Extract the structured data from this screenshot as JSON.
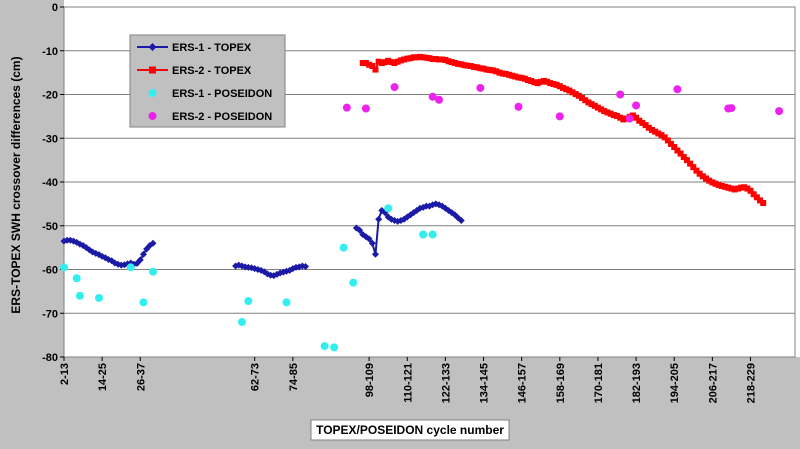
{
  "chart_data": {
    "type": "line",
    "xlabel": "TOPEX/POSEIDON cycle number",
    "ylabel": "ERS-TOPEX SWH crossover differences (cm)",
    "xlim": [
      0,
      230
    ],
    "ylim": [
      -80,
      0
    ],
    "y_ticks": [
      "-80",
      "-70",
      "-60",
      "-50",
      "-40",
      "-30",
      "-20",
      "-10",
      "0"
    ],
    "x_ticks": [
      {
        "label": "2-13",
        "x": 0
      },
      {
        "label": "14-25",
        "x": 12
      },
      {
        "label": "26-37",
        "x": 24
      },
      {
        "label": "62-73",
        "x": 60
      },
      {
        "label": "74-85",
        "x": 72
      },
      {
        "label": "98-109",
        "x": 96
      },
      {
        "label": "110-121",
        "x": 108
      },
      {
        "label": "122-133",
        "x": 120
      },
      {
        "label": "134-145",
        "x": 132
      },
      {
        "label": "146-157",
        "x": 144
      },
      {
        "label": "158-169",
        "x": 156
      },
      {
        "label": "170-181",
        "x": 168
      },
      {
        "label": "182-193",
        "x": 180
      },
      {
        "label": "194-205",
        "x": 192
      },
      {
        "label": "206-217",
        "x": 204
      },
      {
        "label": "218-229",
        "x": 216
      }
    ],
    "grid": "horizontal",
    "legend_position": "top-left",
    "series": [
      {
        "name": "ERS-1 - TOPEX",
        "style": "line-diamond",
        "color": "#1a1aa6",
        "segments": [
          [
            [
              0,
              -53.5
            ],
            [
              1,
              -53.3
            ],
            [
              2,
              -53.3
            ],
            [
              3,
              -53.5
            ],
            [
              4,
              -53.8
            ],
            [
              5,
              -54.2
            ],
            [
              6,
              -54.5
            ],
            [
              7,
              -55
            ],
            [
              8,
              -55.5
            ],
            [
              9,
              -56
            ],
            [
              10,
              -56.3
            ],
            [
              11,
              -56.6
            ],
            [
              12,
              -57
            ],
            [
              13,
              -57.3
            ],
            [
              14,
              -57.7
            ],
            [
              15,
              -58
            ],
            [
              16,
              -58.5
            ],
            [
              17,
              -58.8
            ],
            [
              18,
              -59
            ],
            [
              19,
              -58.9
            ],
            [
              20,
              -58.7
            ],
            [
              21,
              -58.5
            ],
            [
              22,
              -58.8
            ],
            [
              23,
              -58.6
            ],
            [
              24,
              -57.8
            ],
            [
              25,
              -56.5
            ],
            [
              26,
              -55.3
            ],
            [
              27,
              -54.5
            ],
            [
              28,
              -54
            ]
          ],
          [
            [
              54,
              -59.2
            ],
            [
              55,
              -59
            ],
            [
              56,
              -59.2
            ],
            [
              57,
              -59.4
            ],
            [
              58,
              -59.5
            ],
            [
              59,
              -59.6
            ],
            [
              60,
              -59.8
            ],
            [
              61,
              -60
            ],
            [
              62,
              -60.2
            ],
            [
              63,
              -60.5
            ],
            [
              64,
              -61
            ],
            [
              65,
              -61.3
            ],
            [
              66,
              -61.4
            ],
            [
              67,
              -61.1
            ],
            [
              68,
              -60.8
            ],
            [
              69,
              -60.6
            ],
            [
              70,
              -60.4
            ],
            [
              71,
              -60.2
            ],
            [
              72,
              -59.8
            ],
            [
              73,
              -59.5
            ],
            [
              74,
              -59.4
            ],
            [
              75,
              -59.2
            ],
            [
              76,
              -59.3
            ]
          ],
          [
            [
              92,
              -50.5
            ],
            [
              93,
              -51
            ],
            [
              94,
              -52
            ],
            [
              95,
              -52.5
            ],
            [
              96,
              -53
            ],
            [
              97,
              -54
            ],
            [
              98,
              -56.5
            ],
            [
              99,
              -48.5
            ],
            [
              100,
              -46.5
            ],
            [
              101,
              -47
            ],
            [
              102,
              -48
            ],
            [
              103,
              -48.5
            ],
            [
              104,
              -48.8
            ],
            [
              105,
              -49
            ],
            [
              106,
              -48.8
            ],
            [
              107,
              -48.5
            ],
            [
              108,
              -48
            ],
            [
              109,
              -47.5
            ],
            [
              110,
              -47
            ],
            [
              111,
              -46.5
            ],
            [
              112,
              -46
            ],
            [
              113,
              -45.8
            ],
            [
              114,
              -45.5
            ],
            [
              115,
              -45.5
            ],
            [
              116,
              -45.2
            ],
            [
              117,
              -45
            ],
            [
              118,
              -45.2
            ],
            [
              119,
              -45.5
            ],
            [
              120,
              -46
            ],
            [
              121,
              -46.5
            ],
            [
              122,
              -47
            ],
            [
              123,
              -47.5
            ],
            [
              124,
              -48.2
            ],
            [
              125,
              -48.8
            ]
          ]
        ]
      },
      {
        "name": "ERS-2 - TOPEX",
        "style": "line-square",
        "color": "#ff0000",
        "segments": [
          [
            [
              94,
              -12.8
            ],
            [
              95,
              -12.8
            ],
            [
              96,
              -13.2
            ],
            [
              97,
              -13.5
            ],
            [
              98,
              -14.3
            ],
            [
              99,
              -12.5
            ],
            [
              100,
              -12.8
            ],
            [
              101,
              -12.6
            ],
            [
              102,
              -12.3
            ],
            [
              103,
              -12.6
            ],
            [
              104,
              -12.8
            ],
            [
              105,
              -12.5
            ],
            [
              106,
              -12.2
            ],
            [
              107,
              -12
            ],
            [
              108,
              -11.8
            ],
            [
              109,
              -11.7
            ],
            [
              110,
              -11.5
            ],
            [
              111,
              -11.5
            ],
            [
              112,
              -11.4
            ],
            [
              113,
              -11.5
            ],
            [
              114,
              -11.6
            ],
            [
              115,
              -11.7
            ],
            [
              116,
              -11.9
            ],
            [
              117,
              -11.9
            ],
            [
              118,
              -12
            ],
            [
              119,
              -12
            ],
            [
              120,
              -12.1
            ],
            [
              121,
              -12.4
            ],
            [
              122,
              -12.6
            ],
            [
              123,
              -12.8
            ],
            [
              124,
              -13
            ],
            [
              125,
              -13.1
            ],
            [
              126,
              -13.3
            ],
            [
              127,
              -13.4
            ],
            [
              128,
              -13.5
            ],
            [
              129,
              -13.7
            ],
            [
              130,
              -13.8
            ],
            [
              131,
              -14
            ],
            [
              132,
              -14.1
            ],
            [
              133,
              -14.3
            ],
            [
              134,
              -14.4
            ],
            [
              135,
              -14.5
            ],
            [
              136,
              -14.7
            ],
            [
              137,
              -15
            ],
            [
              138,
              -15.2
            ],
            [
              139,
              -15.3
            ],
            [
              140,
              -15.5
            ],
            [
              141,
              -15.7
            ],
            [
              142,
              -15.9
            ],
            [
              143,
              -16.1
            ],
            [
              144,
              -16.2
            ],
            [
              145,
              -16.4
            ],
            [
              146,
              -16.7
            ],
            [
              147,
              -16.9
            ],
            [
              148,
              -17.2
            ],
            [
              149,
              -17.4
            ],
            [
              150,
              -17.1
            ],
            [
              151,
              -16.9
            ],
            [
              152,
              -17.1
            ],
            [
              153,
              -17.4
            ],
            [
              154,
              -17.6
            ],
            [
              155,
              -17.8
            ],
            [
              156,
              -18.1
            ],
            [
              157,
              -18.5
            ],
            [
              158,
              -18.8
            ],
            [
              159,
              -19.1
            ],
            [
              160,
              -19.5
            ],
            [
              161,
              -19.9
            ],
            [
              162,
              -20.3
            ],
            [
              163,
              -20.8
            ],
            [
              164,
              -21.3
            ],
            [
              165,
              -21.8
            ],
            [
              166,
              -22.2
            ],
            [
              167,
              -22.6
            ],
            [
              168,
              -23
            ],
            [
              169,
              -23.4
            ],
            [
              170,
              -23.8
            ],
            [
              171,
              -24.1
            ],
            [
              172,
              -24.4
            ],
            [
              173,
              -24.7
            ],
            [
              174,
              -24.9
            ],
            [
              175,
              -25.3
            ],
            [
              176,
              -25.7
            ],
            [
              177,
              -25.5
            ],
            [
              178,
              -25.1
            ],
            [
              179,
              -24.8
            ],
            [
              180,
              -25.3
            ],
            [
              181,
              -26
            ],
            [
              182,
              -26.5
            ],
            [
              183,
              -27
            ],
            [
              184,
              -27.6
            ],
            [
              185,
              -28.1
            ],
            [
              186,
              -28.5
            ],
            [
              187,
              -28.9
            ],
            [
              188,
              -29.3
            ],
            [
              189,
              -29.8
            ],
            [
              190,
              -30.5
            ],
            [
              191,
              -31.3
            ],
            [
              192,
              -32
            ],
            [
              193,
              -32.8
            ],
            [
              194,
              -33.5
            ],
            [
              195,
              -34.3
            ],
            [
              196,
              -35
            ],
            [
              197,
              -35.8
            ],
            [
              198,
              -36.6
            ],
            [
              199,
              -37.4
            ],
            [
              200,
              -38.1
            ],
            [
              201,
              -38.7
            ],
            [
              202,
              -39.2
            ],
            [
              203,
              -39.7
            ],
            [
              204,
              -40.1
            ],
            [
              205,
              -40.4
            ],
            [
              206,
              -40.7
            ],
            [
              207,
              -40.9
            ],
            [
              208,
              -41.1
            ],
            [
              209,
              -41.3
            ],
            [
              210,
              -41.5
            ],
            [
              211,
              -41.7
            ],
            [
              212,
              -41.5
            ],
            [
              213,
              -41.3
            ],
            [
              214,
              -41.2
            ],
            [
              215,
              -41.5
            ],
            [
              216,
              -42
            ],
            [
              217,
              -42.8
            ],
            [
              218,
              -43.5
            ],
            [
              219,
              -44.2
            ],
            [
              220,
              -44.8
            ]
          ]
        ]
      },
      {
        "name": "ERS-1 - POSEIDON",
        "style": "dots",
        "color": "#33eeee",
        "points": [
          [
            0,
            -59.5
          ],
          [
            4,
            -62
          ],
          [
            5,
            -66
          ],
          [
            11,
            -66.5
          ],
          [
            21,
            -59.5
          ],
          [
            25,
            -67.5
          ],
          [
            28,
            -60.5
          ],
          [
            56,
            -72
          ],
          [
            58,
            -67.2
          ],
          [
            70,
            -67.5
          ],
          [
            82,
            -77.5
          ],
          [
            85,
            -77.8
          ],
          [
            88,
            -55
          ],
          [
            91,
            -63
          ],
          [
            102,
            -46
          ],
          [
            113,
            -52
          ],
          [
            116,
            -52
          ]
        ]
      },
      {
        "name": "ERS-2 - POSEIDON",
        "style": "dots",
        "color": "#ee22ee",
        "points": [
          [
            89,
            -23
          ],
          [
            95,
            -23.2
          ],
          [
            104,
            -18.3
          ],
          [
            116,
            -20.5
          ],
          [
            118,
            -21.2
          ],
          [
            131,
            -18.5
          ],
          [
            143,
            -22.8
          ],
          [
            156,
            -25
          ],
          [
            175,
            -20
          ],
          [
            178,
            -25.5
          ],
          [
            180,
            -22.5
          ],
          [
            193,
            -18.8
          ],
          [
            209,
            -23.2
          ],
          [
            210,
            -23.1
          ],
          [
            225,
            -23.8
          ]
        ]
      }
    ]
  }
}
